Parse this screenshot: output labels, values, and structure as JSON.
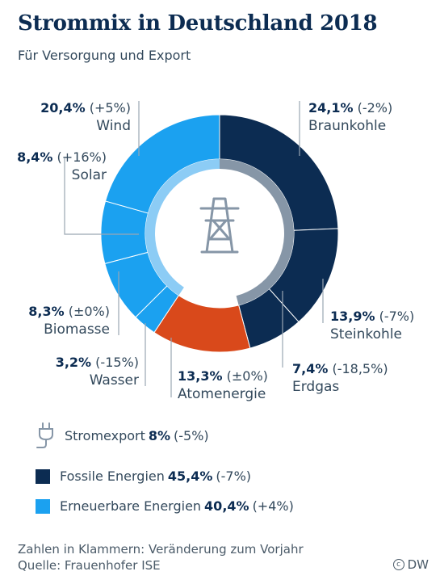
{
  "title": "Strommix in Deutschland 2018",
  "subtitle": "Für Versorgung und Export",
  "chart_data": {
    "type": "pie",
    "title": "Strommix in Deutschland 2018",
    "subtitle": "Für Versorgung und Export",
    "donut": true,
    "slices": [
      {
        "key": "braunkohle",
        "name": "Braunkohle",
        "value": 24.1,
        "pct": "24,1%",
        "change": "(-2%)",
        "color": "#0c2c52",
        "group": "fossil"
      },
      {
        "key": "steinkohle",
        "name": "Steinkohle",
        "value": 13.9,
        "pct": "13,9%",
        "change": "(-7%)",
        "color": "#0c2c52",
        "group": "fossil"
      },
      {
        "key": "erdgas",
        "name": "Erdgas",
        "value": 7.4,
        "pct": "7,4%",
        "change": "(-18,5%)",
        "color": "#0c2c52",
        "group": "fossil"
      },
      {
        "key": "atomenergie",
        "name": "Atomenergie",
        "value": 13.3,
        "pct": "13,3%",
        "change": "(±0%)",
        "color": "#d9491b",
        "group": "nuclear"
      },
      {
        "key": "wasser",
        "name": "Wasser",
        "value": 3.2,
        "pct": "3,2%",
        "change": "(-15%)",
        "color": "#1ba1f0",
        "group": "renewable"
      },
      {
        "key": "biomasse",
        "name": "Biomasse",
        "value": 8.3,
        "pct": "8,3%",
        "change": "(±0%)",
        "color": "#1ba1f0",
        "group": "renewable"
      },
      {
        "key": "solar",
        "name": "Solar",
        "value": 8.4,
        "pct": "8,4%",
        "change": "(+16%)",
        "color": "#1ba1f0",
        "group": "renewable"
      },
      {
        "key": "wind",
        "name": "Wind",
        "value": 20.4,
        "pct": "20,4%",
        "change": "(+5%)",
        "color": "#1ba1f0",
        "group": "renewable"
      }
    ],
    "inner_ring": {
      "fossil_color": "#8696a7",
      "renewable_color": "#8cccf5"
    },
    "center_icon": "power-pylon-icon"
  },
  "export": {
    "icon": "plug-icon",
    "label": "Stromexport",
    "value": "8%",
    "change": "(-5%)"
  },
  "legend": [
    {
      "label": "Fossile Energien",
      "value": "45,4%",
      "change": "(-7%)",
      "color": "#0c2c52"
    },
    {
      "label": "Erneuerbare Energien",
      "value": "40,4%",
      "change": "(+4%)",
      "color": "#1ba1f0"
    }
  ],
  "footer": {
    "note": "Zahlen in Klammern: Veränderung zum Vorjahr",
    "source": "Quelle: Frauenhofer ISE",
    "credit": "DW"
  }
}
